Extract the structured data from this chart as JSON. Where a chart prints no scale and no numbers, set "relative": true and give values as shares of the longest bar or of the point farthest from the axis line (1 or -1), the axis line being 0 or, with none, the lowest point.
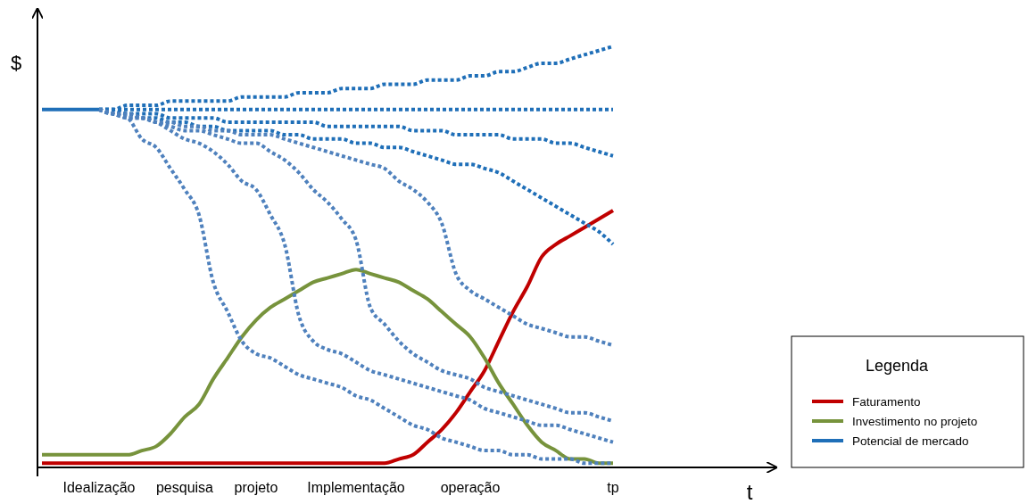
{
  "chart_data": {
    "type": "line",
    "relative": true,
    "annotations": [
      "t"
    ],
    "ylabel": "$",
    "legend_title": "Legenda",
    "legend": "right",
    "tick_labels": "x",
    "marker": "none",
    "categories": [
      null,
      null,
      null,
      null,
      "Idealização",
      null,
      null,
      null,
      null,
      null,
      "pesquisa",
      null,
      null,
      null,
      null,
      "projeto",
      null,
      null,
      null,
      null,
      null,
      null,
      "Implementação",
      null,
      null,
      null,
      null,
      null,
      null,
      null,
      "operação",
      null,
      null,
      null,
      null,
      null,
      null,
      null,
      null,
      null,
      "tp"
    ],
    "series": [
      {
        "name": "Faturamento",
        "color": "#c00000",
        "line_style": "solid",
        "values": [
          0.01,
          0.01,
          0.01,
          0.01,
          0.01,
          0.01,
          0.01,
          0.01,
          0.01,
          0.01,
          0.01,
          0.01,
          0.01,
          0.01,
          0.01,
          0.01,
          0.01,
          0.01,
          0.01,
          0.01,
          0.01,
          0.01,
          0.01,
          0.01,
          0.01,
          0.02,
          0.03,
          0.06,
          0.09,
          0.13,
          0.18,
          0.23,
          0.3,
          0.37,
          0.43,
          0.5,
          0.53,
          0.55,
          0.57,
          0.59,
          0.61
        ]
      },
      {
        "name": "Investimento no projeto",
        "color": "#77933c",
        "line_style": "solid",
        "values": [
          0.03,
          0.03,
          0.03,
          0.03,
          0.03,
          0.03,
          0.03,
          0.04,
          0.05,
          0.08,
          0.12,
          0.15,
          0.21,
          0.26,
          0.31,
          0.35,
          0.38,
          0.4,
          0.42,
          0.44,
          0.45,
          0.46,
          0.47,
          0.46,
          0.45,
          0.44,
          0.42,
          0.4,
          0.37,
          0.34,
          0.31,
          0.26,
          0.2,
          0.15,
          0.1,
          0.06,
          0.04,
          0.02,
          0.02,
          0.01,
          0.01
        ]
      },
      {
        "name": "Potencial de mercado",
        "color": "#1f6fb8",
        "line_style": "solid",
        "values": [
          0.85,
          0.85,
          0.85,
          0.85,
          0.85,
          null,
          null,
          null,
          null,
          null,
          null,
          null,
          null,
          null,
          null,
          null,
          null,
          null,
          null,
          null,
          null,
          null,
          null,
          null,
          null,
          null,
          null,
          null,
          null,
          null,
          null,
          null,
          null,
          null,
          null,
          null,
          null,
          null,
          null,
          null,
          null
        ]
      },
      {
        "color": "#1f6fb8",
        "line_style": "dotted",
        "values": [
          null,
          null,
          null,
          null,
          0.85,
          0.85,
          0.86,
          0.86,
          0.86,
          0.87,
          0.87,
          0.87,
          0.87,
          0.87,
          0.88,
          0.88,
          0.88,
          0.88,
          0.89,
          0.89,
          0.89,
          0.9,
          0.9,
          0.9,
          0.91,
          0.91,
          0.91,
          0.92,
          0.92,
          0.92,
          0.93,
          0.93,
          0.94,
          0.94,
          0.95,
          0.96,
          0.96,
          0.97,
          0.98,
          0.99,
          1.0
        ]
      },
      {
        "color": "#1f6fb8",
        "line_style": "dotted",
        "values": [
          null,
          null,
          null,
          null,
          0.85,
          0.85,
          0.85,
          0.85,
          0.85,
          0.85,
          0.85,
          0.85,
          0.85,
          0.85,
          0.85,
          0.85,
          0.85,
          0.85,
          0.85,
          0.85,
          0.85,
          0.85,
          0.85,
          0.85,
          0.85,
          0.85,
          0.85,
          0.85,
          0.85,
          0.85,
          0.85,
          0.85,
          0.85,
          0.85,
          0.85,
          0.85,
          0.85,
          0.85,
          0.85,
          0.85,
          0.85
        ]
      },
      {
        "color": "#1f6fb8",
        "line_style": "dotted",
        "values": [
          null,
          null,
          null,
          null,
          0.85,
          0.85,
          0.84,
          0.84,
          0.84,
          0.83,
          0.83,
          0.83,
          0.83,
          0.82,
          0.82,
          0.82,
          0.82,
          0.82,
          0.82,
          0.82,
          0.81,
          0.81,
          0.81,
          0.81,
          0.81,
          0.81,
          0.8,
          0.8,
          0.8,
          0.79,
          0.79,
          0.79,
          0.79,
          0.78,
          0.78,
          0.78,
          0.77,
          0.77,
          0.76,
          0.75,
          0.74
        ]
      },
      {
        "color": "#1f6fb8",
        "line_style": "dotted",
        "values": [
          null,
          null,
          null,
          null,
          0.85,
          0.84,
          0.84,
          0.83,
          0.83,
          0.82,
          0.82,
          0.81,
          0.81,
          0.8,
          0.8,
          0.8,
          0.8,
          0.79,
          0.79,
          0.78,
          0.78,
          0.78,
          0.77,
          0.77,
          0.76,
          0.76,
          0.75,
          0.74,
          0.73,
          0.72,
          0.72,
          0.71,
          0.7,
          0.68,
          0.66,
          0.64,
          0.62,
          0.6,
          0.58,
          0.56,
          0.53
        ]
      },
      {
        "color": "#4f81bd",
        "line_style": "dotted",
        "values": [
          null,
          null,
          null,
          null,
          0.85,
          0.84,
          0.83,
          0.83,
          0.82,
          0.82,
          0.81,
          0.81,
          0.8,
          0.8,
          0.79,
          0.79,
          0.79,
          0.78,
          0.77,
          0.76,
          0.75,
          0.74,
          0.73,
          0.72,
          0.71,
          0.68,
          0.66,
          0.63,
          0.58,
          0.46,
          0.42,
          0.4,
          0.38,
          0.36,
          0.34,
          0.33,
          0.32,
          0.31,
          0.31,
          0.3,
          0.29
        ]
      },
      {
        "color": "#4f81bd",
        "line_style": "dotted",
        "values": [
          null,
          null,
          null,
          null,
          0.85,
          0.84,
          0.83,
          0.83,
          0.82,
          0.81,
          0.8,
          0.8,
          0.79,
          0.78,
          0.77,
          0.77,
          0.75,
          0.73,
          0.7,
          0.66,
          0.63,
          0.59,
          0.54,
          0.38,
          0.34,
          0.3,
          0.27,
          0.25,
          0.23,
          0.22,
          0.21,
          0.19,
          0.18,
          0.17,
          0.16,
          0.15,
          0.14,
          0.13,
          0.13,
          0.12,
          0.11
        ]
      },
      {
        "color": "#4f81bd",
        "line_style": "dotted",
        "values": [
          null,
          null,
          null,
          null,
          0.85,
          0.84,
          0.84,
          0.83,
          0.82,
          0.8,
          0.78,
          0.77,
          0.75,
          0.72,
          0.68,
          0.66,
          0.6,
          0.53,
          0.36,
          0.3,
          0.28,
          0.27,
          0.25,
          0.23,
          0.22,
          0.21,
          0.2,
          0.19,
          0.18,
          0.17,
          0.16,
          0.14,
          0.13,
          0.12,
          0.11,
          0.1,
          0.1,
          0.09,
          0.08,
          0.07,
          0.06
        ]
      },
      {
        "color": "#4f81bd",
        "line_style": "dotted",
        "values": [
          null,
          null,
          null,
          null,
          0.85,
          0.84,
          0.83,
          0.78,
          0.76,
          0.71,
          0.66,
          0.6,
          0.44,
          0.37,
          0.3,
          0.27,
          0.26,
          0.24,
          0.22,
          0.21,
          0.2,
          0.19,
          0.17,
          0.16,
          0.14,
          0.12,
          0.1,
          0.09,
          0.07,
          0.06,
          0.05,
          0.04,
          0.04,
          0.03,
          0.03,
          0.02,
          0.02,
          0.02,
          0.01,
          0.01,
          0.01
        ]
      }
    ]
  }
}
